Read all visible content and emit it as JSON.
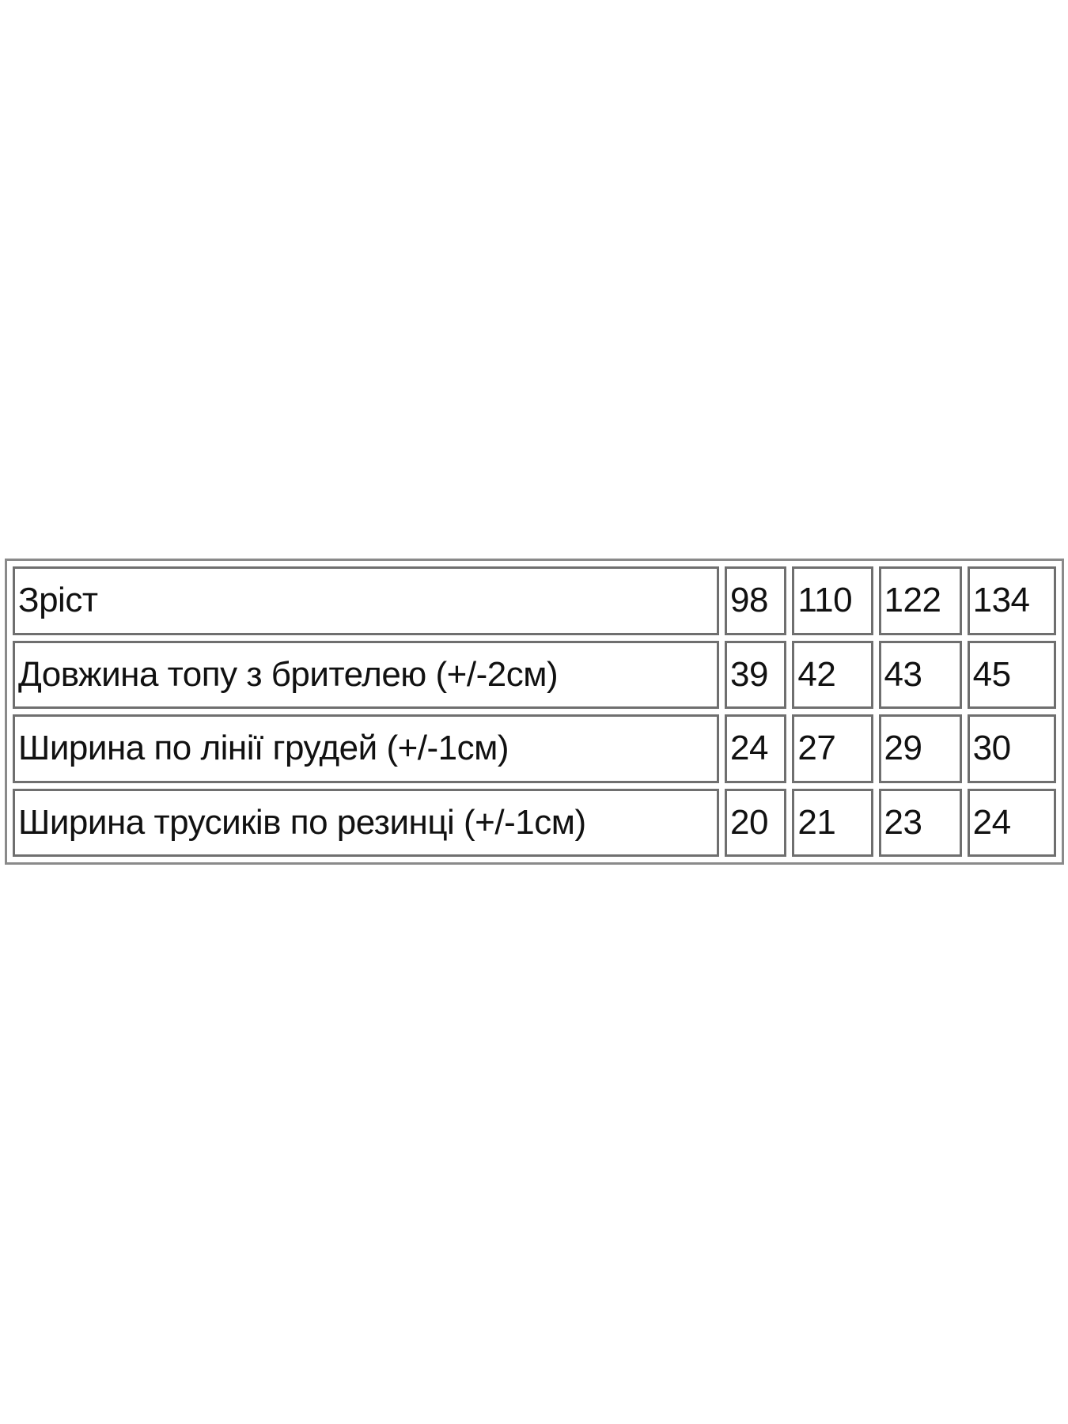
{
  "table": {
    "rows": [
      {
        "label": "Зріст",
        "values": [
          "98",
          "110",
          "122",
          "134"
        ]
      },
      {
        "label": "Довжина топу з брителею (+/-2см)",
        "values": [
          "39",
          "42",
          "43",
          "45"
        ]
      },
      {
        "label": "Ширина по лінії грудей (+/-1см)",
        "values": [
          "24",
          "27",
          "29",
          "30"
        ]
      },
      {
        "label": "Ширина трусиків по резинці (+/-1см)",
        "values": [
          "20",
          "21",
          "23",
          "24"
        ]
      }
    ]
  }
}
